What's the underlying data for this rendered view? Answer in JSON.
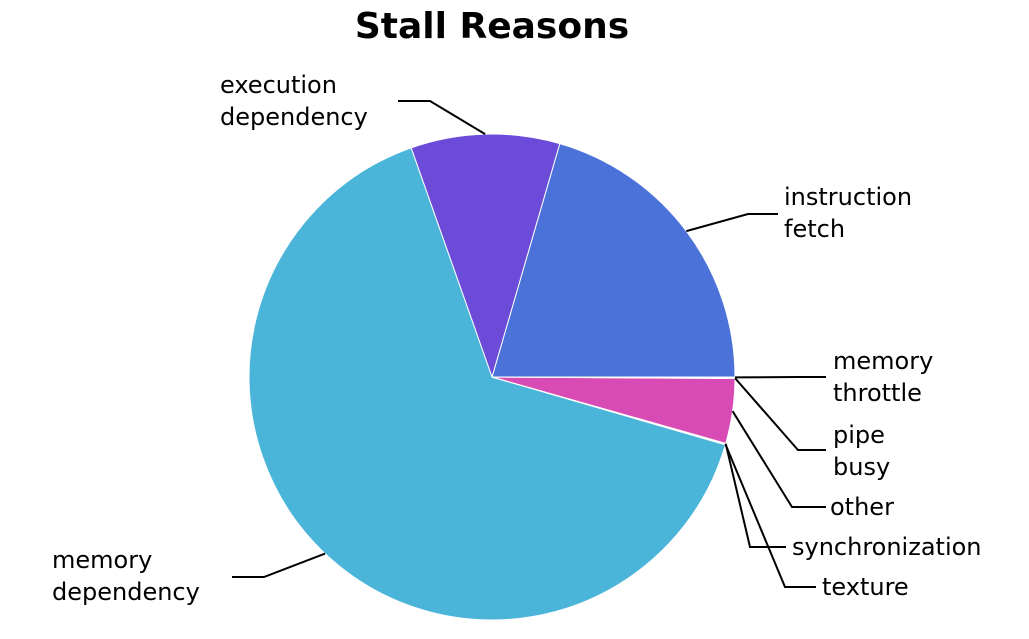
{
  "chart_data": {
    "type": "pie",
    "title": "Stall Reasons",
    "start_angle_deg": 0,
    "direction": "counterclockwise",
    "slices": [
      {
        "key": "instruction_fetch",
        "label_lines": [
          "instruction",
          "fetch"
        ],
        "value": 20.5,
        "color": "#4a72d9"
      },
      {
        "key": "execution_dependency",
        "label_lines": [
          "execution",
          "dependency"
        ],
        "value": 9.9,
        "color": "#6c4bd8"
      },
      {
        "key": "memory_dependency",
        "label_lines": [
          "memory",
          "dependency"
        ],
        "value": 65.1,
        "color": "#4bb4d9"
      },
      {
        "key": "texture",
        "label_lines": [
          "texture"
        ],
        "value": 0.05,
        "color": "#d94bb4"
      },
      {
        "key": "synchronization",
        "label_lines": [
          "synchronization"
        ],
        "value": 0.05,
        "color": "#d94bb4"
      },
      {
        "key": "other",
        "label_lines": [
          "other"
        ],
        "value": 4.3,
        "color": "#d94bb4"
      },
      {
        "key": "pipe_busy",
        "label_lines": [
          "pipe",
          "busy"
        ],
        "value": 0.05,
        "color": "#d94bb4"
      },
      {
        "key": "memory_throttle",
        "label_lines": [
          "memory",
          "throttle"
        ],
        "value": 0.05,
        "color": "#d94bb4"
      }
    ]
  }
}
